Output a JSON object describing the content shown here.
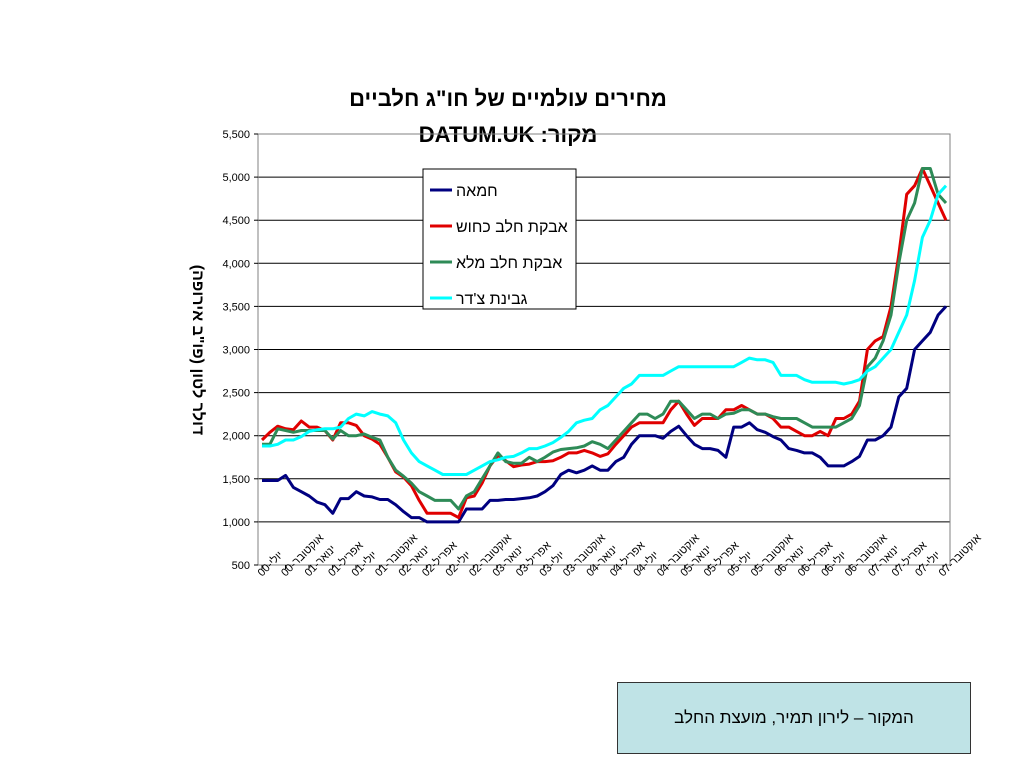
{
  "chart_data": {
    "type": "line",
    "title": "מחירים עולמיים של חו\"ג חלביים",
    "subtitle": "מקור: DATUM.UK",
    "ylabel": "דולר לטון (פו\"ב אירופה)",
    "ylim": [
      500,
      5500
    ],
    "yticks": [
      "500",
      "1,000",
      "1,500",
      "2,000",
      "2,500",
      "3,000",
      "3,500",
      "4,000",
      "4,500",
      "5,000",
      "5,500"
    ],
    "grid": "horizontal",
    "legend_position": "top-center",
    "x_labels": [
      "יולי-00",
      "אוקטובר-00",
      "ינואר-01",
      "אפריל-01",
      "יולי-01",
      "אוקטובר-01",
      "ינואר-02",
      "אפריל-02",
      "יולי-02",
      "אוקטובר-02",
      "ינואר-03",
      "אפריל-03",
      "יולי-03",
      "אוקטובר-03",
      "ינואר-04",
      "אפריל-04",
      "יולי-04",
      "אוקטובר-04",
      "ינואר-05",
      "אפריל-05",
      "יולי-05",
      "אוקטובר-05",
      "ינואר-06",
      "אפריל-06",
      "יולי-06",
      "אוקטובר-06",
      "ינואר-07",
      "אפריל-07",
      "יולי-07",
      "אוקטובר-07"
    ],
    "series": [
      {
        "name": "חמאה",
        "color": "#000080",
        "values": [
          1480,
          1480,
          1480,
          1540,
          1400,
          1350,
          1300,
          1230,
          1200,
          1100,
          1270,
          1270,
          1350,
          1300,
          1290,
          1260,
          1260,
          1200,
          1120,
          1050,
          1050,
          1000,
          1000,
          1000,
          1000,
          1000,
          1150,
          1150,
          1150,
          1250,
          1250,
          1260,
          1260,
          1270,
          1280,
          1300,
          1350,
          1420,
          1550,
          1600,
          1570,
          1600,
          1650,
          1600,
          1600,
          1700,
          1750,
          1900,
          2000,
          2000,
          2000,
          1970,
          2050,
          2110,
          2000,
          1900,
          1850,
          1850,
          1830,
          1750,
          2100,
          2100,
          2150,
          2070,
          2040,
          1990,
          1950,
          1850,
          1830,
          1800,
          1800,
          1750,
          1650,
          1650,
          1650,
          1700,
          1760,
          1950,
          1950,
          2000,
          2100,
          2450,
          2550,
          3000,
          3100,
          3200,
          3400,
          3500
        ]
      },
      {
        "name": "אבקת חלב כחוש",
        "color": "#e00000",
        "values": [
          1950,
          2040,
          2110,
          2080,
          2070,
          2170,
          2100,
          2100,
          2060,
          1950,
          2150,
          2150,
          2120,
          2000,
          1960,
          1900,
          1750,
          1580,
          1520,
          1420,
          1250,
          1100,
          1100,
          1100,
          1100,
          1050,
          1280,
          1300,
          1450,
          1650,
          1770,
          1710,
          1640,
          1660,
          1670,
          1700,
          1700,
          1710,
          1750,
          1800,
          1800,
          1830,
          1800,
          1760,
          1790,
          1900,
          2000,
          2100,
          2150,
          2150,
          2150,
          2150,
          2300,
          2400,
          2250,
          2120,
          2200,
          2200,
          2200,
          2300,
          2300,
          2350,
          2300,
          2250,
          2250,
          2200,
          2100,
          2100,
          2050,
          2000,
          2000,
          2050,
          2000,
          2200,
          2200,
          2250,
          2400,
          3000,
          3100,
          3150,
          3500,
          4100,
          4800,
          4900,
          5100,
          4900,
          4700,
          4500
        ]
      },
      {
        "name": "אבקת חלב מלא",
        "color": "#2e8b57",
        "values": [
          1900,
          1900,
          2080,
          2060,
          2040,
          2060,
          2060,
          2060,
          2060,
          1960,
          2060,
          2000,
          2000,
          2020,
          1980,
          1950,
          1750,
          1600,
          1530,
          1450,
          1350,
          1300,
          1250,
          1250,
          1250,
          1150,
          1300,
          1350,
          1500,
          1650,
          1800,
          1700,
          1680,
          1680,
          1750,
          1700,
          1750,
          1810,
          1840,
          1850,
          1860,
          1880,
          1930,
          1900,
          1850,
          1950,
          2050,
          2150,
          2250,
          2250,
          2200,
          2250,
          2400,
          2400,
          2300,
          2200,
          2250,
          2250,
          2200,
          2250,
          2260,
          2300,
          2300,
          2250,
          2250,
          2220,
          2200,
          2200,
          2200,
          2150,
          2100,
          2100,
          2100,
          2100,
          2150,
          2200,
          2350,
          2800,
          2900,
          3100,
          3400,
          4000,
          4500,
          4700,
          5100,
          5100,
          4800,
          4700
        ]
      },
      {
        "name": "גבינת צ'דר",
        "color": "#00ffff",
        "values": [
          1880,
          1880,
          1900,
          1950,
          1950,
          1990,
          2050,
          2070,
          2080,
          2080,
          2100,
          2200,
          2250,
          2230,
          2280,
          2250,
          2230,
          2150,
          1950,
          1800,
          1700,
          1650,
          1600,
          1550,
          1550,
          1550,
          1550,
          1600,
          1650,
          1700,
          1720,
          1750,
          1760,
          1800,
          1850,
          1850,
          1880,
          1920,
          1980,
          2050,
          2150,
          2180,
          2200,
          2300,
          2350,
          2450,
          2550,
          2600,
          2700,
          2700,
          2700,
          2700,
          2750,
          2800,
          2800,
          2800,
          2800,
          2800,
          2800,
          2800,
          2800,
          2850,
          2900,
          2880,
          2880,
          2850,
          2700,
          2700,
          2700,
          2650,
          2620,
          2620,
          2620,
          2620,
          2600,
          2620,
          2650,
          2750,
          2800,
          2900,
          3000,
          3200,
          3400,
          3800,
          4300,
          4500,
          4800,
          4900
        ]
      }
    ]
  },
  "footer": {
    "source_text": "המקור – לירון תמיר, מועצת החלב"
  }
}
